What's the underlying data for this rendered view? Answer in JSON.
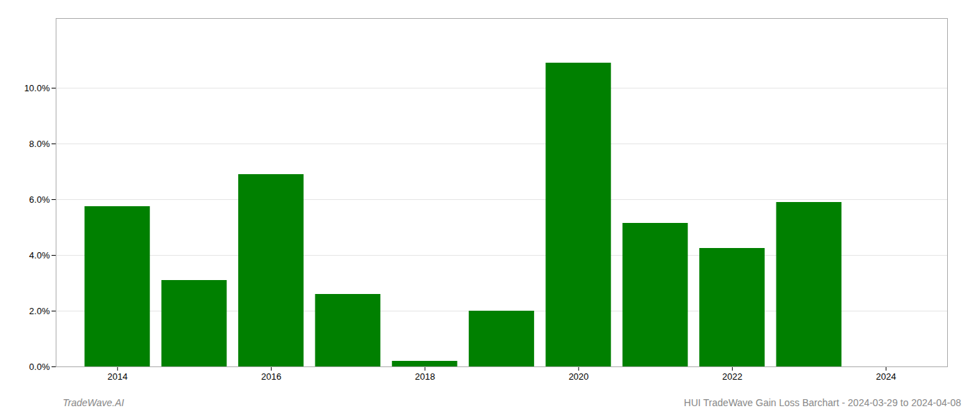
{
  "chart_data": {
    "type": "bar",
    "x": [
      2014,
      2015,
      2016,
      2017,
      2018,
      2019,
      2020,
      2021,
      2022,
      2023
    ],
    "values": [
      0.0575,
      0.031,
      0.069,
      0.026,
      0.002,
      0.02,
      0.109,
      0.0515,
      0.0425,
      0.059
    ],
    "color": "#008000",
    "xlim": [
      2013.2,
      2024.8
    ],
    "xticks": [
      2014,
      2016,
      2018,
      2020,
      2022,
      2024
    ],
    "ylim": [
      0,
      0.125
    ],
    "yticks": [
      {
        "value": 0.0,
        "label": "0.0%"
      },
      {
        "value": 0.02,
        "label": "2.0%"
      },
      {
        "value": 0.04,
        "label": "4.0%"
      },
      {
        "value": 0.06,
        "label": "6.0%"
      },
      {
        "value": 0.08,
        "label": "8.0%"
      },
      {
        "value": 0.1,
        "label": "10.0%"
      }
    ],
    "grid": true,
    "annotations": [
      "TradeWave.AI",
      "HUI TradeWave Gain Loss Barchart - 2024-03-29 to 2024-04-08"
    ]
  }
}
